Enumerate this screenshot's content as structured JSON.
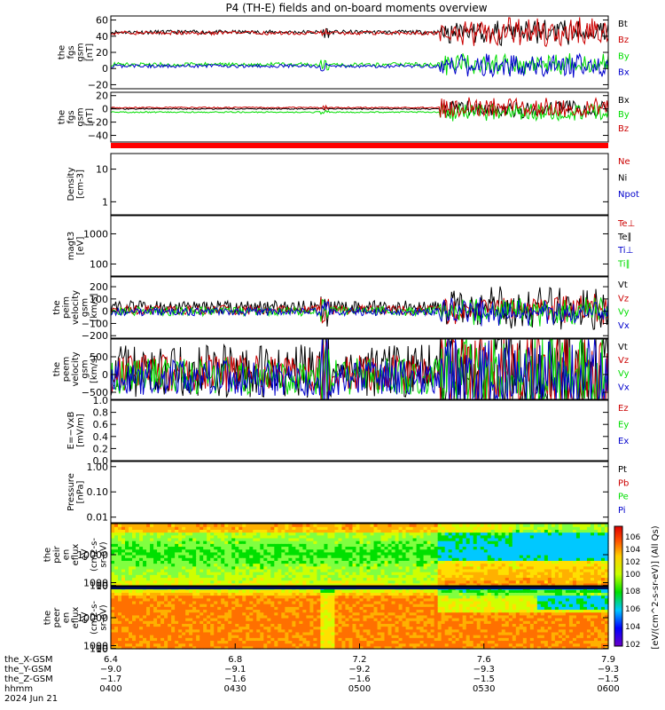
{
  "title": "P4 (TH-E) fields and on-board moments overview",
  "colors": {
    "black": "#000000",
    "red": "#cc0000",
    "green": "#00dd00",
    "blue": "#0000cc"
  },
  "chart_data": [
    {
      "type": "line",
      "id": "fgs_gsm",
      "ylabel": [
        "the",
        "fgs",
        "gsm",
        "[nT]"
      ],
      "yticks": [
        "60",
        "40",
        "20",
        "0",
        "−20"
      ],
      "ylim": [
        -25,
        65
      ],
      "legend": [
        {
          "name": "Bt",
          "color": "black"
        },
        {
          "name": "Bz",
          "color": "red"
        },
        {
          "name": "By",
          "color": "green"
        },
        {
          "name": "Bx",
          "color": "blue"
        }
      ],
      "series": [
        {
          "name": "Bt",
          "color": "black",
          "base": 45,
          "noise": 2,
          "late": 12
        },
        {
          "name": "Bz",
          "color": "red",
          "base": 44,
          "noise": 2,
          "late": 15
        },
        {
          "name": "By",
          "color": "green",
          "base": 5,
          "noise": 2,
          "late": 10
        },
        {
          "name": "Bx",
          "color": "blue",
          "base": 3,
          "noise": 1.5,
          "late": 12
        }
      ]
    },
    {
      "type": "line",
      "id": "fgs_gsm_dsl",
      "ylabel": [
        "the",
        "fgs",
        "gsm",
        "[nT]"
      ],
      "yticks": [
        "20",
        "0",
        "−20",
        "−40"
      ],
      "ylim": [
        -50,
        25
      ],
      "legend": [
        {
          "name": "Bx",
          "color": "black"
        },
        {
          "name": "By",
          "color": "green"
        },
        {
          "name": "Bz",
          "color": "red"
        }
      ],
      "series": [
        {
          "name": "Bx",
          "color": "black",
          "base": 0,
          "noise": 2,
          "late": 12
        },
        {
          "name": "By",
          "color": "green",
          "base": -5,
          "noise": 2,
          "late": 12
        },
        {
          "name": "Bz",
          "color": "red",
          "base": 2,
          "noise": 2,
          "late": 14
        }
      ]
    },
    {
      "type": "line",
      "id": "density",
      "log": true,
      "ylabel": [
        "Density",
        "[cm-3]"
      ],
      "yticks": [
        "10",
        "1"
      ],
      "ylim": [
        0.4,
        30
      ],
      "legend": [
        {
          "name": "Ne",
          "color": "red"
        },
        {
          "name": "Ni",
          "color": "black"
        },
        {
          "name": "Npot",
          "color": "blue"
        }
      ],
      "series": [
        {
          "name": "Ne",
          "color": "red",
          "base": 2.0,
          "noise": 0.05,
          "late": 0.4
        },
        {
          "name": "Ni",
          "color": "black",
          "base": 0.6,
          "noise": 0.05,
          "late": 0.5
        },
        {
          "name": "Npot",
          "color": "blue",
          "base": 0.5,
          "noise": 0.02,
          "late": 0.3
        }
      ]
    },
    {
      "type": "line",
      "id": "temperature",
      "log": true,
      "ylabel": [
        "magt3",
        "[eV]"
      ],
      "yticks": [
        "1000",
        "100"
      ],
      "ylim": [
        40,
        4000
      ],
      "legend": [
        {
          "name": "Te⊥",
          "color": "red"
        },
        {
          "name": "Te∥",
          "color": "black"
        },
        {
          "name": "Ti⊥",
          "color": "blue"
        },
        {
          "name": "Ti∥",
          "color": "green"
        }
      ],
      "series": [
        {
          "name": "Te⊥",
          "color": "red",
          "base": 800,
          "noise": 0.04,
          "late": 0.3
        },
        {
          "name": "Te∥",
          "color": "black",
          "base": 900,
          "noise": 0.04,
          "late": 0.3
        },
        {
          "name": "Ti⊥",
          "color": "blue",
          "base": 2500,
          "noise": 0.04,
          "late": 0.2
        },
        {
          "name": "Ti∥",
          "color": "green",
          "base": 1800,
          "noise": 0.04,
          "late": 0.2
        }
      ]
    },
    {
      "type": "line",
      "id": "peim_velocity",
      "ylabel": [
        "the",
        "peim",
        "velocity",
        "gsm",
        "[km/s]"
      ],
      "yticks": [
        "200",
        "100",
        "0",
        "−100",
        "−200"
      ],
      "ylim": [
        -220,
        280
      ],
      "legend": [
        {
          "name": "Vt",
          "color": "black"
        },
        {
          "name": "Vz",
          "color": "red"
        },
        {
          "name": "Vy",
          "color": "green"
        },
        {
          "name": "Vx",
          "color": "blue"
        }
      ],
      "series": [
        {
          "name": "Vt",
          "color": "black",
          "base": 30,
          "noise": 15,
          "late": 80
        },
        {
          "name": "Vz",
          "color": "red",
          "base": 10,
          "noise": 10,
          "late": 50
        },
        {
          "name": "Vy",
          "color": "green",
          "base": 0,
          "noise": 10,
          "late": 50
        },
        {
          "name": "Vx",
          "color": "blue",
          "base": -5,
          "noise": 8,
          "late": 60
        }
      ]
    },
    {
      "type": "line",
      "id": "peem_velocity",
      "ylabel": [
        "the",
        "peem",
        "velocity",
        "gsm",
        "[km/s]"
      ],
      "yticks": [
        "500",
        "0",
        "−500"
      ],
      "ylim": [
        -700,
        1000
      ],
      "legend": [
        {
          "name": "Vt",
          "color": "black"
        },
        {
          "name": "Vz",
          "color": "red"
        },
        {
          "name": "Vy",
          "color": "green"
        },
        {
          "name": "Vx",
          "color": "blue"
        }
      ],
      "series": [
        {
          "name": "Vt",
          "color": "black",
          "base": 100,
          "noise": 60,
          "late": 250
        },
        {
          "name": "Vz",
          "color": "red",
          "base": 50,
          "noise": 40,
          "late": 150
        },
        {
          "name": "Vy",
          "color": "green",
          "base": -50,
          "noise": 40,
          "late": 150
        },
        {
          "name": "Vx",
          "color": "blue",
          "base": -100,
          "noise": 40,
          "late": 150
        }
      ]
    },
    {
      "type": "line",
      "id": "efield",
      "ylabel": [
        "E=−VxB",
        "[mV/m]"
      ],
      "yticks": [
        "1.0",
        "0.8",
        "0.6",
        "0.4",
        "0.2",
        "0.0"
      ],
      "ylim": [
        0,
        1
      ],
      "legend": [
        {
          "name": "Ez",
          "color": "red"
        },
        {
          "name": "Ey",
          "color": "green"
        },
        {
          "name": "Ex",
          "color": "blue"
        }
      ],
      "series": []
    },
    {
      "type": "line",
      "id": "pressure",
      "log": true,
      "ylabel": [
        "Pressure",
        "[nPa]"
      ],
      "yticks": [
        "1.00",
        "0.10",
        "0.01"
      ],
      "ylim": [
        0.006,
        1.6
      ],
      "legend": [
        {
          "name": "Pt",
          "color": "black"
        },
        {
          "name": "Pb",
          "color": "red"
        },
        {
          "name": "Pe",
          "color": "green"
        },
        {
          "name": "Pi",
          "color": "blue"
        }
      ],
      "series": [
        {
          "name": "Pt",
          "color": "black",
          "base": 0.9,
          "noise": 0.02,
          "late": 0.2
        },
        {
          "name": "Pb",
          "color": "red",
          "base": 0.85,
          "noise": 0.02,
          "late": 0.5
        },
        {
          "name": "Pe",
          "color": "green",
          "base": 0.06,
          "noise": 0.05,
          "late": 0.4
        },
        {
          "name": "Pi",
          "color": "blue",
          "base": 0.12,
          "noise": 0.03,
          "late": 0.2
        }
      ]
    },
    {
      "type": "heatmap",
      "id": "peir",
      "ylabel": [
        "the",
        "peir",
        "en",
        "eflux",
        "eV",
        "(cm2-s-",
        "sr-eV)"
      ],
      "yticks": [
        "10000",
        "1000",
        "100",
        "10"
      ],
      "ylim": [
        7,
        20000
      ]
    },
    {
      "type": "heatmap",
      "id": "peer",
      "ylabel": [
        "the",
        "peer",
        "en",
        "eflux",
        "eV",
        "(cm2-s-",
        "sr-eV)"
      ],
      "yticks": [
        "10000",
        "1000",
        "100",
        "10"
      ],
      "ylim": [
        7,
        20000
      ]
    }
  ],
  "colorbar": {
    "label": "[eV/(cm^2-s-sr-eV)] (All Qs)",
    "upper_ticks": [
      "10^6",
      "10^4",
      "10^2",
      "10^0"
    ],
    "lower_ticks": [
      "10^8",
      "10^6",
      "10^4",
      "10^2"
    ]
  },
  "x_axis": {
    "rows": [
      {
        "label": "the_X-GSM",
        "values": [
          "6.4",
          "6.8",
          "7.2",
          "7.6",
          "7.9"
        ]
      },
      {
        "label": "the_Y-GSM",
        "values": [
          "−9.0",
          "−9.1",
          "−9.2",
          "−9.3",
          "−9.3"
        ]
      },
      {
        "label": "the_Z-GSM",
        "values": [
          "−1.7",
          "−1.6",
          "−1.6",
          "−1.5",
          "−1.5"
        ]
      },
      {
        "label": "hhmm",
        "values": [
          "0400",
          "0430",
          "0500",
          "0530",
          "0600"
        ]
      }
    ],
    "date": "2024 Jun 21"
  }
}
